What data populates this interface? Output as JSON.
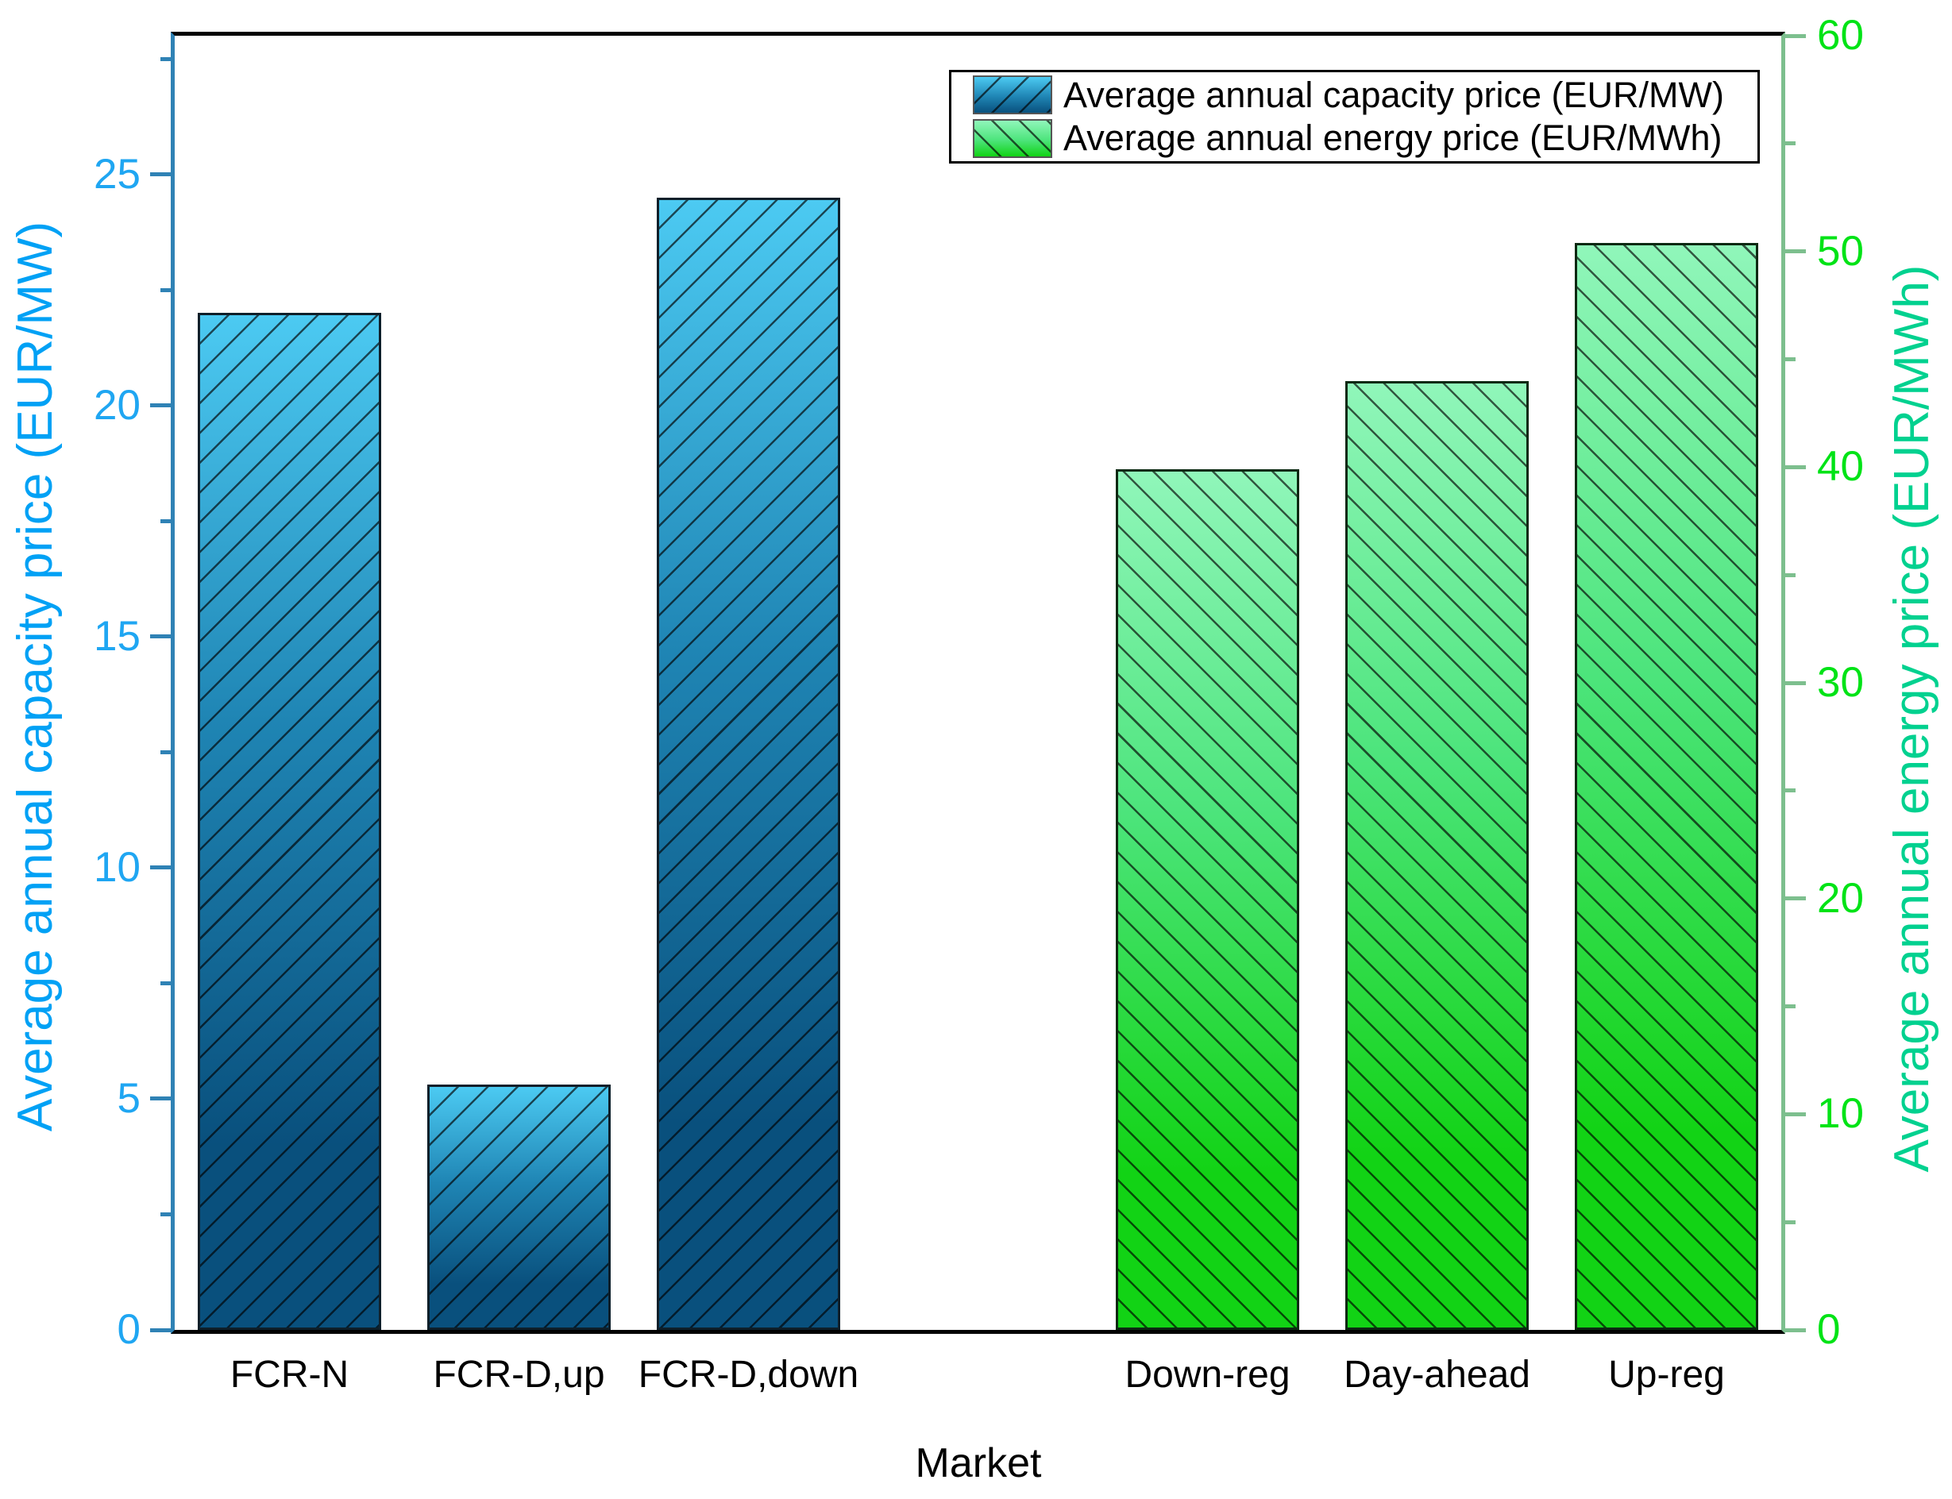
{
  "chart_data": {
    "type": "bar",
    "title": "",
    "xlabel": "Market",
    "categories": [
      "FCR-N",
      "FCR-D,up",
      "FCR-D,down",
      "Down-reg",
      "Day-ahead",
      "Up-reg"
    ],
    "series": [
      {
        "name": "Average annual capacity price (EUR/MW)",
        "axis": "left",
        "hatch": "/",
        "values": [
          22.0,
          5.3,
          24.5,
          null,
          null,
          null
        ]
      },
      {
        "name": "Average annual energy price (EUR/MWh)",
        "axis": "right",
        "hatch": "\\",
        "values": [
          null,
          null,
          null,
          39.9,
          44.0,
          50.4
        ]
      }
    ],
    "left_axis": {
      "label": "Average annual capacity price (EUR/MW)",
      "min": 0,
      "max": 28,
      "major_ticks": [
        0,
        5,
        10,
        15,
        20,
        25
      ],
      "minor_step": 2.5
    },
    "right_axis": {
      "label": "Average annual energy price (EUR/MWh)",
      "min": 0,
      "max": 60,
      "major_ticks": [
        0,
        10,
        20,
        30,
        40,
        50,
        60
      ],
      "minor_step": 5
    },
    "legend": {
      "position": "top-center-right",
      "entries": [
        "Average annual capacity price (EUR/MW)",
        "Average annual energy price (EUR/MWh)"
      ]
    },
    "grid": false,
    "colors": {
      "cap_top": "#4ccaf2",
      "cap_mid": "#1f85b4",
      "cap_bottom": "#09507d",
      "energy_top": "#90f6ba",
      "energy_mid": "#4ce47b",
      "energy_bottom": "#12d315",
      "hatch": "rgba(0,0,0,0.65)",
      "left_spine": "#2f82b5",
      "right_spine": "#7dbf8e",
      "frame": "#000000",
      "left_tick_label": "#1fa6f2",
      "left_title": "#00a1f5",
      "right_tick_label": "#00e316",
      "right_title": "#00d18f"
    }
  }
}
